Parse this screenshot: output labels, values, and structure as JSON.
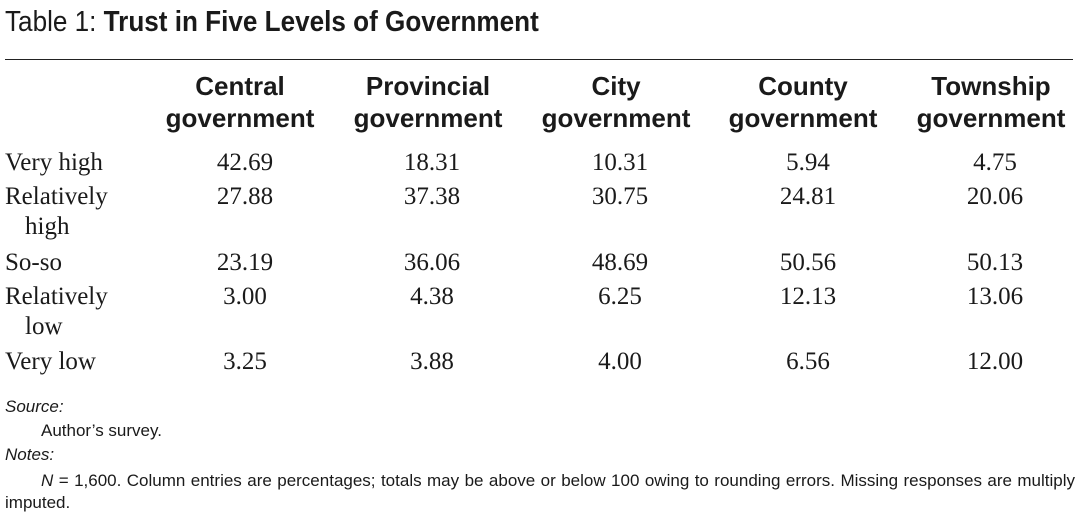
{
  "caption": {
    "label": "Table 1:",
    "title": "Trust in Five Levels of Government"
  },
  "columns": [
    {
      "line1": "Central",
      "line2": "government"
    },
    {
      "line1": "Provincial",
      "line2": "government"
    },
    {
      "line1": "City",
      "line2": "government"
    },
    {
      "line1": "County",
      "line2": "government"
    },
    {
      "line1": "Township",
      "line2": "government"
    }
  ],
  "rows": [
    {
      "label": "Very high",
      "label2": "",
      "values": [
        "42.69",
        "18.31",
        "10.31",
        "5.94",
        "4.75"
      ]
    },
    {
      "label": "Relatively",
      "label2": "high",
      "values": [
        "27.88",
        "37.38",
        "30.75",
        "24.81",
        "20.06"
      ]
    },
    {
      "label": "So-so",
      "label2": "",
      "values": [
        "23.19",
        "36.06",
        "48.69",
        "50.56",
        "50.13"
      ]
    },
    {
      "label": "Relatively",
      "label2": "low",
      "values": [
        "3.00",
        "4.38",
        "6.25",
        "12.13",
        "13.06"
      ]
    },
    {
      "label": "Very low",
      "label2": "",
      "values": [
        "3.25",
        "3.88",
        "4.00",
        "6.56",
        "12.00"
      ]
    }
  ],
  "source": {
    "heading": "Source:",
    "text": "Author’s survey."
  },
  "notes": {
    "heading": "Notes:",
    "n_italic": "N",
    "text": " = 1,600. Column entries are percentages; totals may be above or below 100 owing to rounding errors. Missing responses are multiply imputed."
  }
}
